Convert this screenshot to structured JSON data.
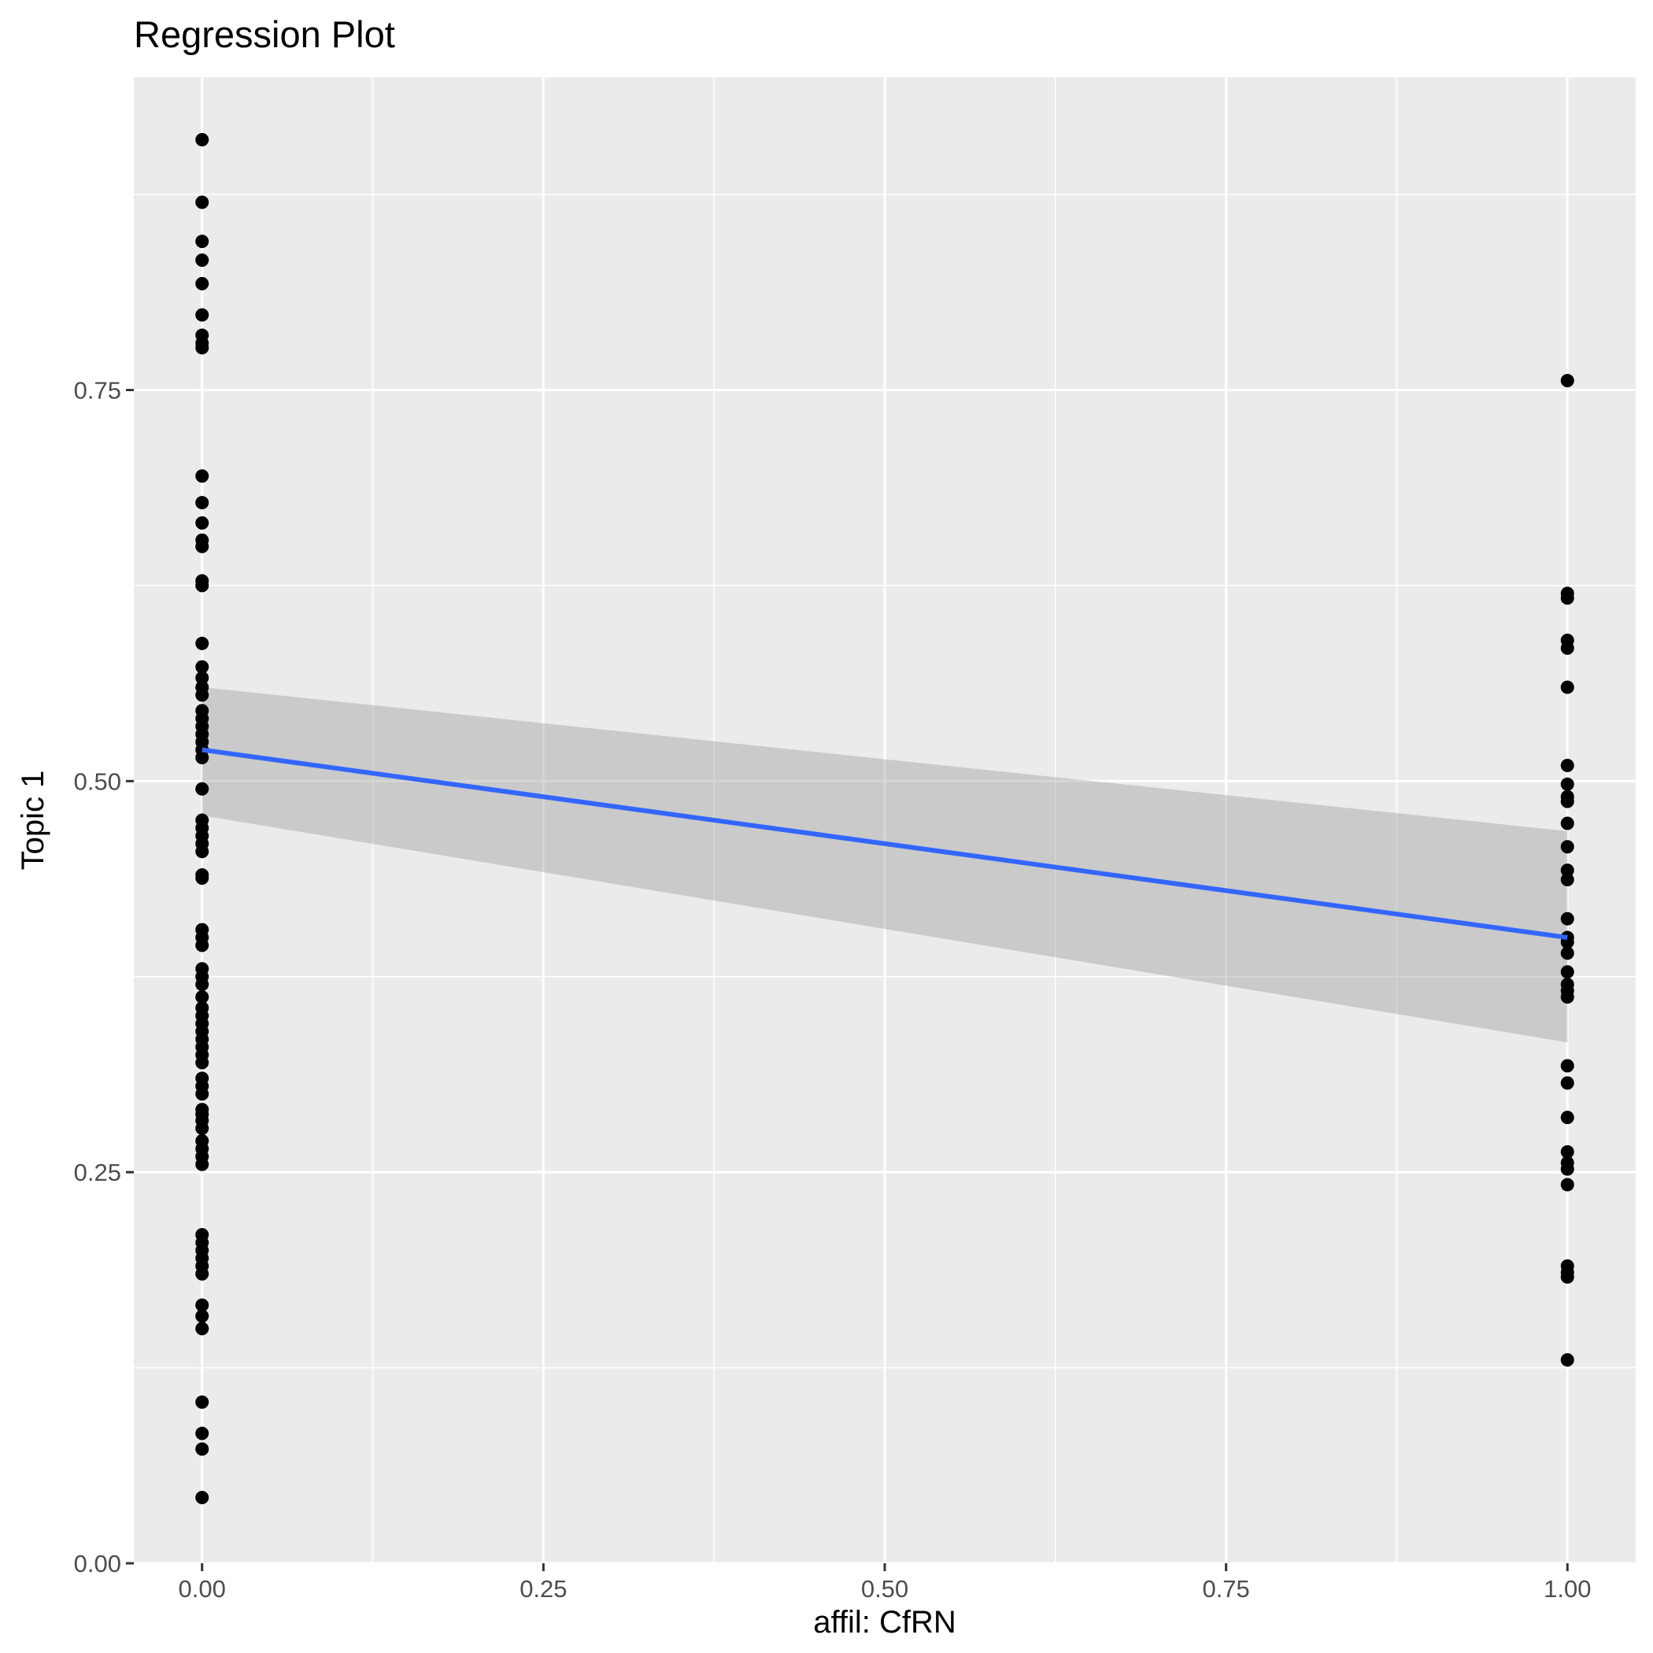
{
  "chart_data": {
    "type": "scatter",
    "title": "Regression Plot",
    "xlabel": "affil: CfRN",
    "ylabel": "Topic 1",
    "xlim": [
      -0.05,
      1.05
    ],
    "ylim": [
      0.0,
      0.95
    ],
    "x_ticks": [
      "0.00",
      "0.25",
      "0.50",
      "0.75",
      "1.00"
    ],
    "y_ticks": [
      "0.00",
      "0.25",
      "0.50",
      "0.75"
    ],
    "grid": true,
    "background": "#ebebeb",
    "point_color": "#000000",
    "line_color": "#3366ff",
    "band_color": "#999999",
    "series": [
      {
        "x": 0.0,
        "y": [
          0.91,
          0.87,
          0.845,
          0.833,
          0.818,
          0.798,
          0.785,
          0.78,
          0.777,
          0.695,
          0.678,
          0.665,
          0.654,
          0.65,
          0.628,
          0.625,
          0.588,
          0.573,
          0.566,
          0.56,
          0.555,
          0.545,
          0.54,
          0.535,
          0.53,
          0.525,
          0.52,
          0.515,
          0.495,
          0.475,
          0.47,
          0.465,
          0.46,
          0.455,
          0.44,
          0.438,
          0.405,
          0.4,
          0.395,
          0.38,
          0.375,
          0.37,
          0.362,
          0.355,
          0.35,
          0.345,
          0.34,
          0.335,
          0.33,
          0.325,
          0.32,
          0.31,
          0.305,
          0.3,
          0.29,
          0.287,
          0.283,
          0.278,
          0.27,
          0.265,
          0.26,
          0.255,
          0.21,
          0.205,
          0.2,
          0.195,
          0.19,
          0.185,
          0.165,
          0.158,
          0.15,
          0.103,
          0.083,
          0.073,
          0.042
        ]
      },
      {
        "x": 1.0,
        "y": [
          0.756,
          0.62,
          0.617,
          0.59,
          0.585,
          0.56,
          0.51,
          0.498,
          0.49,
          0.487,
          0.473,
          0.458,
          0.443,
          0.437,
          0.412,
          0.4,
          0.397,
          0.39,
          0.378,
          0.37,
          0.366,
          0.362,
          0.318,
          0.307,
          0.285,
          0.263,
          0.256,
          0.252,
          0.242,
          0.19,
          0.186,
          0.183,
          0.13
        ]
      }
    ],
    "fit": {
      "x": [
        0.0,
        1.0
      ],
      "y": [
        0.52,
        0.4
      ],
      "band_lower": [
        0.478,
        0.333
      ],
      "band_upper": [
        0.56,
        0.468
      ]
    }
  }
}
